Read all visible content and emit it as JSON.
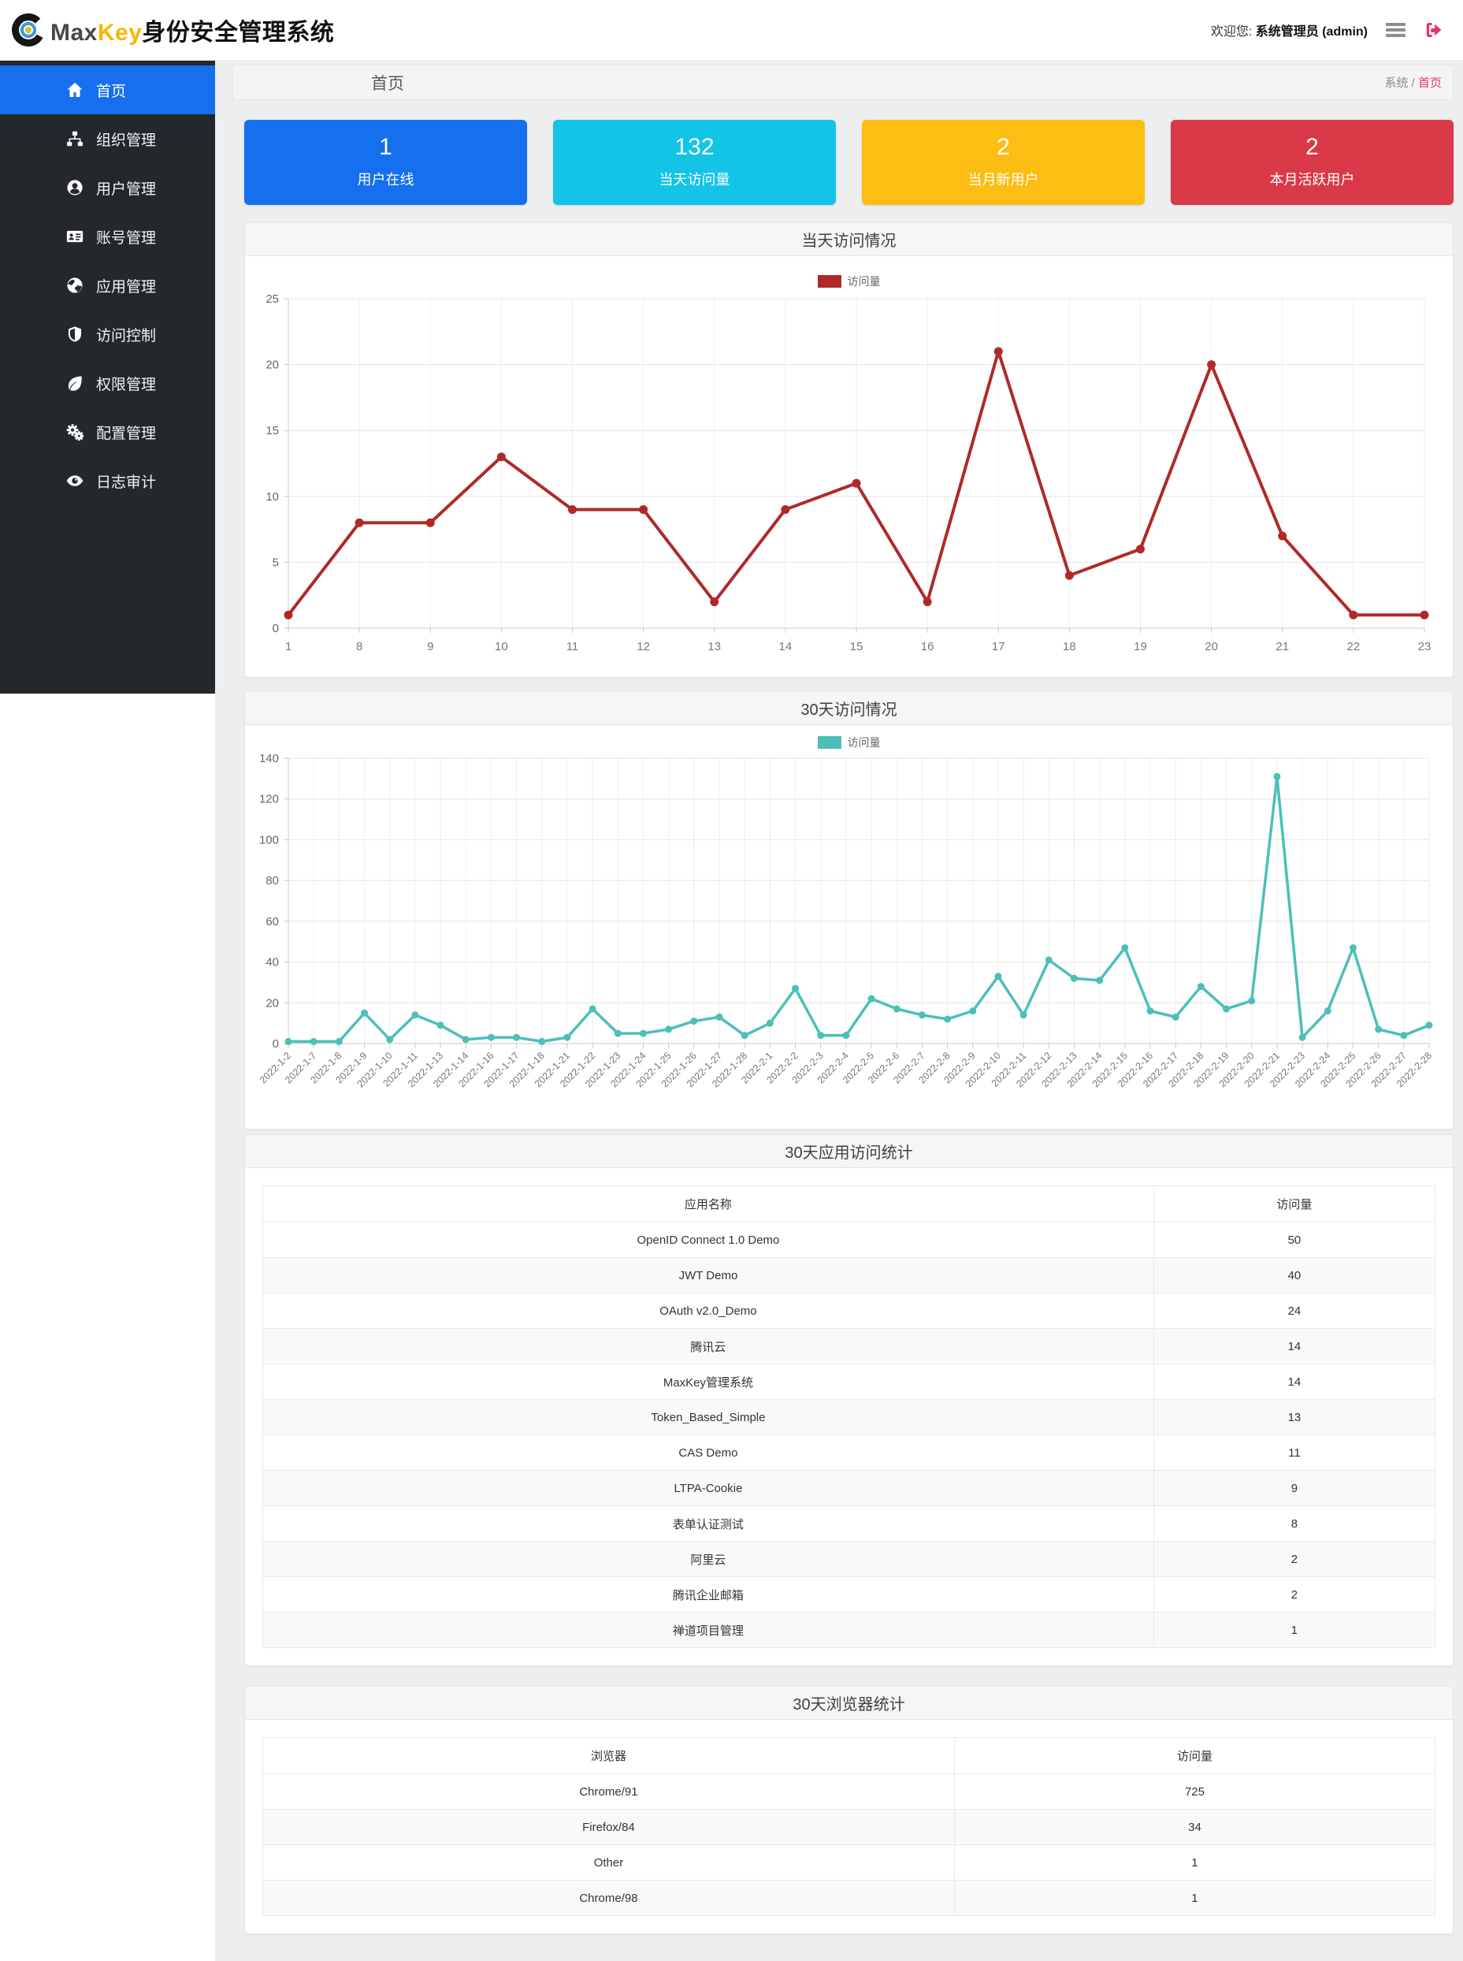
{
  "navbar": {
    "brand": {
      "max": "Max",
      "key": "Key",
      "suffix": "身份安全管理系统"
    },
    "welcome_prefix": "欢迎您: ",
    "welcome_user": "系统管理员 (admin)"
  },
  "sidebar": {
    "items": [
      {
        "label": "首页",
        "icon": "home-icon",
        "active": true
      },
      {
        "label": "组织管理",
        "icon": "sitemap-icon",
        "active": false
      },
      {
        "label": "用户管理",
        "icon": "user-circle-icon",
        "active": false
      },
      {
        "label": "账号管理",
        "icon": "id-card-icon",
        "active": false
      },
      {
        "label": "应用管理",
        "icon": "globe-icon",
        "active": false
      },
      {
        "label": "访问控制",
        "icon": "shield-icon",
        "active": false
      },
      {
        "label": "权限管理",
        "icon": "leaf-icon",
        "active": false
      },
      {
        "label": "配置管理",
        "icon": "cogs-icon",
        "active": false
      },
      {
        "label": "日志审计",
        "icon": "eye-icon",
        "active": false
      }
    ]
  },
  "breadcrumb": {
    "page_title": "首页",
    "root": "系统",
    "separator": " / ",
    "current": "首页"
  },
  "stat_cards": [
    {
      "value": "1",
      "label": "用户在线",
      "color": "#156fee"
    },
    {
      "value": "132",
      "label": "当天访问量",
      "color": "#14c4e6"
    },
    {
      "value": "2",
      "label": "当月新用户",
      "color": "#fcbe12"
    },
    {
      "value": "2",
      "label": "本月活跃用户",
      "color": "#da3948"
    }
  ],
  "chart_data": [
    {
      "type": "line",
      "title": "当天访问情况",
      "legend": "访问量",
      "color": "#b02929",
      "categories": [
        "1",
        "8",
        "9",
        "10",
        "11",
        "12",
        "13",
        "14",
        "15",
        "16",
        "17",
        "18",
        "19",
        "20",
        "21",
        "22",
        "23"
      ],
      "values": [
        1,
        8,
        8,
        13,
        9,
        9,
        2,
        9,
        11,
        2,
        21,
        4,
        6,
        20,
        7,
        1,
        1
      ],
      "xlabel": "",
      "ylabel": "",
      "ylim": [
        0,
        25
      ],
      "yticks": [
        0,
        5,
        10,
        15,
        20,
        25
      ],
      "grid": true,
      "legend_position": "top",
      "rotate_labels": false
    },
    {
      "type": "line",
      "title": "30天访问情况",
      "legend": "访问量",
      "color": "#4cbfb9",
      "categories": [
        "2022-1-2",
        "2022-1-7",
        "2022-1-8",
        "2022-1-9",
        "2022-1-10",
        "2022-1-11",
        "2022-1-13",
        "2022-1-14",
        "2022-1-16",
        "2022-1-17",
        "2022-1-18",
        "2022-1-21",
        "2022-1-22",
        "2022-1-23",
        "2022-1-24",
        "2022-1-25",
        "2022-1-26",
        "2022-1-27",
        "2022-1-28",
        "2022-2-1",
        "2022-2-2",
        "2022-2-3",
        "2022-2-4",
        "2022-2-5",
        "2022-2-6",
        "2022-2-7",
        "2022-2-8",
        "2022-2-9",
        "2022-2-10",
        "2022-2-11",
        "2022-2-12",
        "2022-2-13",
        "2022-2-14",
        "2022-2-15",
        "2022-2-16",
        "2022-2-17",
        "2022-2-18",
        "2022-2-19",
        "2022-2-20",
        "2022-2-21",
        "2022-2-23",
        "2022-2-24",
        "2022-2-25",
        "2022-2-26",
        "2022-2-27",
        "2022-2-28"
      ],
      "values": [
        1,
        1,
        1,
        15,
        2,
        14,
        9,
        2,
        3,
        3,
        1,
        3,
        17,
        5,
        5,
        7,
        11,
        13,
        4,
        10,
        27,
        4,
        4,
        22,
        17,
        14,
        12,
        16,
        33,
        14,
        41,
        32,
        31,
        47,
        16,
        13,
        28,
        17,
        21,
        131,
        3,
        16,
        47,
        7,
        4,
        9
      ],
      "xlabel": "",
      "ylabel": "",
      "ylim": [
        0,
        140
      ],
      "yticks": [
        0,
        20,
        40,
        60,
        80,
        100,
        120,
        140
      ],
      "grid": true,
      "legend_position": "top",
      "rotate_labels": true
    }
  ],
  "tables": [
    {
      "title": "30天应用访问统计",
      "headers": [
        "应用名称",
        "访问量"
      ],
      "col_widths": [
        "76%",
        "24%"
      ],
      "rows": [
        [
          "OpenID Connect 1.0 Demo",
          "50"
        ],
        [
          "JWT Demo",
          "40"
        ],
        [
          "OAuth v2.0_Demo",
          "24"
        ],
        [
          "腾讯云",
          "14"
        ],
        [
          "MaxKey管理系统",
          "14"
        ],
        [
          "Token_Based_Simple",
          "13"
        ],
        [
          "CAS Demo",
          "11"
        ],
        [
          "LTPA-Cookie",
          "9"
        ],
        [
          "表单认证测试",
          "8"
        ],
        [
          "阿里云",
          "2"
        ],
        [
          "腾讯企业邮箱",
          "2"
        ],
        [
          "禅道项目管理",
          "1"
        ]
      ]
    },
    {
      "title": "30天浏览器统计",
      "headers": [
        "浏览器",
        "访问量"
      ],
      "col_widths": [
        "59%",
        "41%"
      ],
      "rows": [
        [
          "Chrome/91",
          "725"
        ],
        [
          "Firefox/84",
          "34"
        ],
        [
          "Other",
          "1"
        ],
        [
          "Chrome/98",
          "1"
        ]
      ]
    }
  ]
}
